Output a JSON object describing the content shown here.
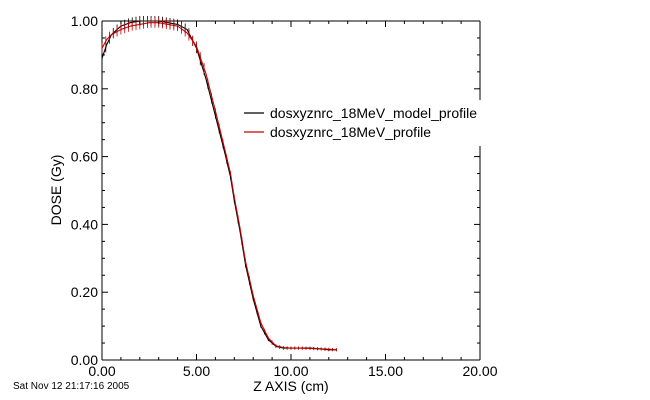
{
  "timestamp": "Sat Nov 12 21:17:16 2005",
  "chart_data": {
    "type": "line",
    "xlabel": "Z AXIS (cm)",
    "ylabel": "DOSE (Gy)",
    "xlim": [
      0,
      20
    ],
    "ylim": [
      0,
      1
    ],
    "xticks": [
      0,
      5,
      10,
      15,
      20
    ],
    "xtick_labels": [
      "0.00",
      "5.00",
      "10.00",
      "15.00",
      "20.00"
    ],
    "yticks": [
      0,
      0.2,
      0.4,
      0.6,
      0.8,
      1.0
    ],
    "ytick_labels": [
      "0.00",
      "0.20",
      "0.40",
      "0.60",
      "0.80",
      "1.00"
    ],
    "grid": false,
    "legend_position": "right",
    "series": [
      {
        "name": "dosxyznrc_18MeV_model_profile",
        "color": "#000000",
        "x": [
          0.0,
          0.25,
          0.5,
          1.0,
          1.5,
          2.0,
          2.5,
          3.0,
          3.5,
          4.0,
          4.5,
          5.0,
          5.5,
          6.0,
          6.5,
          6.8,
          7.0,
          7.3,
          7.6,
          8.0,
          8.4,
          8.8,
          9.2,
          9.6,
          10.0,
          10.5,
          11.0,
          11.5,
          12.0,
          12.4
        ],
        "y": [
          0.89,
          0.93,
          0.96,
          0.985,
          0.995,
          1.0,
          1.0,
          1.0,
          0.995,
          0.99,
          0.975,
          0.92,
          0.83,
          0.72,
          0.61,
          0.54,
          0.47,
          0.38,
          0.28,
          0.18,
          0.1,
          0.06,
          0.04,
          0.035,
          0.035,
          0.035,
          0.035,
          0.033,
          0.03,
          0.03
        ]
      },
      {
        "name": "dosxyznrc_18MeV_profile",
        "color": "#cc0000",
        "x": [
          0.0,
          0.25,
          0.5,
          1.0,
          1.5,
          2.0,
          2.5,
          3.0,
          3.5,
          4.0,
          4.5,
          5.0,
          5.5,
          6.0,
          6.5,
          6.8,
          7.0,
          7.3,
          7.6,
          8.0,
          8.4,
          8.8,
          9.2,
          9.6,
          10.0,
          10.5,
          11.0,
          11.5,
          12.0,
          12.4
        ],
        "y": [
          0.92,
          0.945,
          0.96,
          0.975,
          0.985,
          0.99,
          0.995,
          0.995,
          0.99,
          0.985,
          0.965,
          0.925,
          0.845,
          0.735,
          0.62,
          0.55,
          0.48,
          0.39,
          0.29,
          0.19,
          0.11,
          0.065,
          0.042,
          0.037,
          0.035,
          0.035,
          0.034,
          0.033,
          0.032,
          0.03
        ]
      }
    ]
  }
}
